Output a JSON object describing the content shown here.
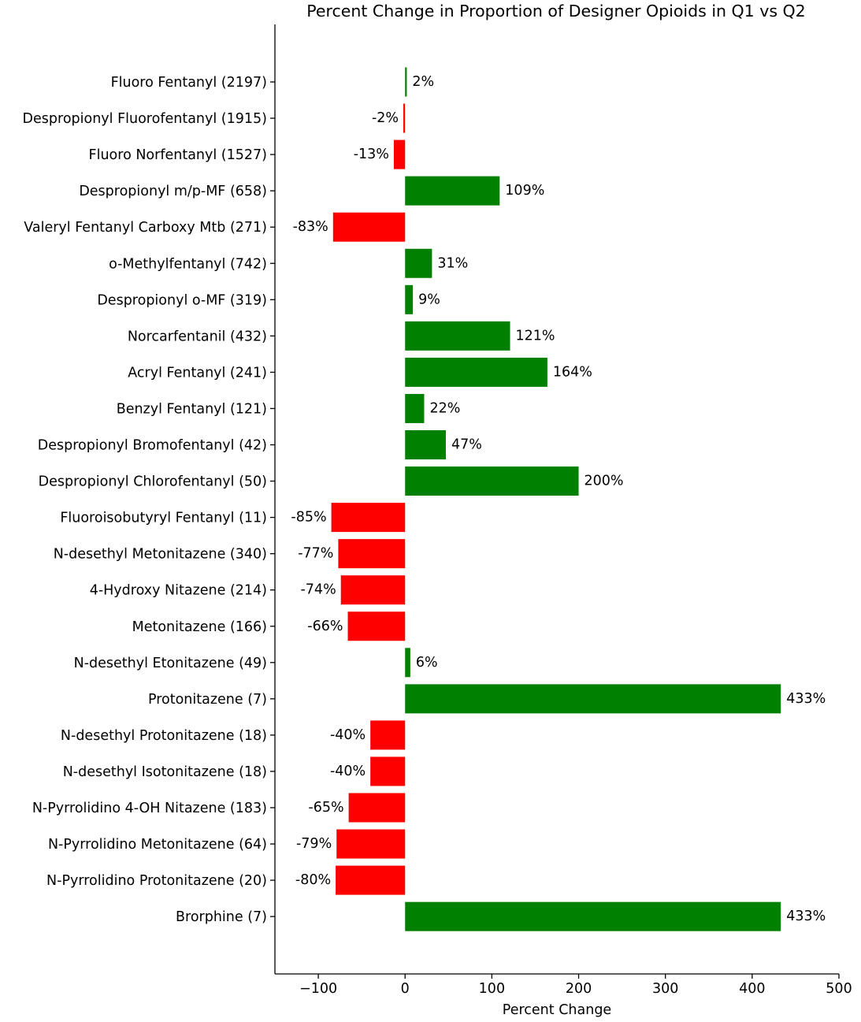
{
  "chart_data": {
    "type": "bar",
    "orientation": "horizontal",
    "title": "Percent Change in Proportion of Designer Opioids in Q1 vs Q2",
    "xlabel": "Percent Change",
    "ylabel": "",
    "xlim": [
      -150,
      500
    ],
    "xticks": [
      -100,
      0,
      100,
      200,
      300,
      400,
      500
    ],
    "xtick_labels": [
      "−100",
      "0",
      "100",
      "200",
      "300",
      "400",
      "500"
    ],
    "grid": false,
    "positive_color": "#008000",
    "negative_color": "#ff0000",
    "categories": [
      "Fluoro Fentanyl (2197)",
      "Despropionyl Fluorofentanyl (1915)",
      "Fluoro Norfentanyl (1527)",
      "Despropionyl m/p-MF (658)",
      "Valeryl Fentanyl Carboxy Mtb (271)",
      "o-Methylfentanyl (742)",
      "Despropionyl o-MF (319)",
      "Norcarfentanil (432)",
      "Acryl Fentanyl (241)",
      "Benzyl Fentanyl (121)",
      "Despropionyl Bromofentanyl (42)",
      "Despropionyl Chlorofentanyl (50)",
      "Fluoroisobutyryl Fentanyl (11)",
      "N-desethyl Metonitazene (340)",
      "4-Hydroxy Nitazene (214)",
      "Metonitazene (166)",
      "N-desethyl Etonitazene (49)",
      "Protonitazene (7)",
      "N-desethyl Protonitazene (18)",
      "N-desethyl Isotonitazene (18)",
      "N-Pyrrolidino 4-OH Nitazene (183)",
      "N-Pyrrolidino Metonitazene (64)",
      "N-Pyrrolidino Protonitazene (20)",
      "Brorphine (7)"
    ],
    "values": [
      2,
      -2,
      -13,
      109,
      -83,
      31,
      9,
      121,
      164,
      22,
      47,
      200,
      -85,
      -77,
      -74,
      -66,
      6,
      433,
      -40,
      -40,
      -65,
      -79,
      -80,
      433
    ],
    "value_labels": [
      "2%",
      "-2%",
      "-13%",
      "109%",
      "-83%",
      "31%",
      "9%",
      "121%",
      "164%",
      "22%",
      "47%",
      "200%",
      "-85%",
      "-77%",
      "-74%",
      "-66%",
      "6%",
      "433%",
      "-40%",
      "-40%",
      "-65%",
      "-79%",
      "-80%",
      "433%"
    ]
  }
}
